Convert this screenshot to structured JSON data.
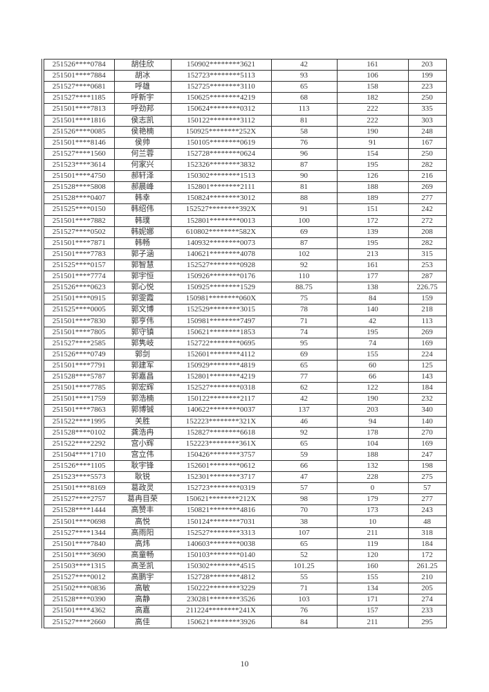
{
  "page": {
    "number": "10"
  },
  "colors": {
    "ink": "#333333",
    "border": "#2d2d2d",
    "paper": "#ffffff"
  },
  "table": {
    "columns": [
      "exam_id",
      "name",
      "id_card",
      "score1",
      "score2",
      "total"
    ],
    "rows": [
      [
        "251526****0784",
        "胡佳欣",
        "150902********3621",
        "42",
        "161",
        "203"
      ],
      [
        "251501****7884",
        "胡冰",
        "152723********5113",
        "93",
        "106",
        "199"
      ],
      [
        "251527****0681",
        "呼雄",
        "152725********3110",
        "65",
        "158",
        "223"
      ],
      [
        "251527****1185",
        "呼新宇",
        "150625********4219",
        "68",
        "182",
        "250"
      ],
      [
        "251501****7813",
        "呼劲邦",
        "150624********0312",
        "113",
        "222",
        "335"
      ],
      [
        "251501****1816",
        "侯志凯",
        "150122********3112",
        "81",
        "222",
        "303"
      ],
      [
        "251526****0085",
        "侯艳楠",
        "150925********252X",
        "58",
        "190",
        "248"
      ],
      [
        "251501****8146",
        "侯帅",
        "150105********0619",
        "76",
        "91",
        "167"
      ],
      [
        "251527****1560",
        "何兰蓉",
        "152728********0624",
        "96",
        "154",
        "250"
      ],
      [
        "251523****3614",
        "何家兴",
        "152326********3832",
        "87",
        "195",
        "282"
      ],
      [
        "251501****4750",
        "郝轩泽",
        "150302********1513",
        "90",
        "126",
        "216"
      ],
      [
        "251528****5808",
        "郝晨峰",
        "152801********2111",
        "81",
        "188",
        "269"
      ],
      [
        "251528****0407",
        "韩幸",
        "150824********3012",
        "88",
        "189",
        "277"
      ],
      [
        "251525****0150",
        "韩绍伟",
        "152527********392X",
        "91",
        "151",
        "242"
      ],
      [
        "251501****7882",
        "韩璞",
        "152801********0013",
        "100",
        "172",
        "272"
      ],
      [
        "251527****0502",
        "韩妮娜",
        "610802********582X",
        "69",
        "139",
        "208"
      ],
      [
        "251501****7871",
        "韩畅",
        "140932********0073",
        "87",
        "195",
        "282"
      ],
      [
        "251501****7783",
        "郭子涵",
        "140621********4078",
        "102",
        "213",
        "315"
      ],
      [
        "251525****0157",
        "郭智慧",
        "152527********0928",
        "92",
        "161",
        "253"
      ],
      [
        "251501****7774",
        "郭宇恒",
        "150926********0176",
        "110",
        "177",
        "287"
      ],
      [
        "251526****0623",
        "郭心悦",
        "150925********1529",
        "88.75",
        "138",
        "226.75"
      ],
      [
        "251501****0915",
        "郭雯霞",
        "150981********060X",
        "75",
        "84",
        "159"
      ],
      [
        "251525****0005",
        "郭文博",
        "152529********3015",
        "78",
        "140",
        "218"
      ],
      [
        "251501****7830",
        "郭亨伟",
        "150981********7497",
        "71",
        "42",
        "113"
      ],
      [
        "251501****7805",
        "郭守镇",
        "150621********1853",
        "74",
        "195",
        "269"
      ],
      [
        "251527****2585",
        "郭隽岐",
        "152722********0695",
        "95",
        "74",
        "169"
      ],
      [
        "251526****0749",
        "郭剑",
        "152601********4112",
        "69",
        "155",
        "224"
      ],
      [
        "251501****7791",
        "郭建军",
        "150929********4819",
        "65",
        "60",
        "125"
      ],
      [
        "251528****5787",
        "郭嘉昌",
        "152801********4219",
        "77",
        "66",
        "143"
      ],
      [
        "251501****7785",
        "郭宏辉",
        "152527********0318",
        "62",
        "122",
        "184"
      ],
      [
        "251501****1759",
        "郭浩楠",
        "150122********2117",
        "42",
        "190",
        "232"
      ],
      [
        "251501****7863",
        "郭博铖",
        "140622********0037",
        "137",
        "203",
        "340"
      ],
      [
        "251522****1995",
        "关胜",
        "152223********321X",
        "46",
        "94",
        "140"
      ],
      [
        "251528****0102",
        "龚浩冉",
        "152827********6618",
        "92",
        "178",
        "270"
      ],
      [
        "251522****2292",
        "宫小辉",
        "152223********361X",
        "65",
        "104",
        "169"
      ],
      [
        "251504****1710",
        "宫立伟",
        "150426********3757",
        "59",
        "188",
        "247"
      ],
      [
        "251526****1105",
        "耿宇锋",
        "152601********0612",
        "66",
        "132",
        "198"
      ],
      [
        "251523****5573",
        "耿锐",
        "152301********3717",
        "47",
        "228",
        "275"
      ],
      [
        "251501****8169",
        "葛政灵",
        "152723********0319",
        "57",
        "0",
        "57"
      ],
      [
        "251527****2757",
        "葛冉目荣",
        "150621********212X",
        "98",
        "179",
        "277"
      ],
      [
        "251528****1444",
        "高赞丰",
        "150821********4816",
        "70",
        "173",
        "243"
      ],
      [
        "251501****0698",
        "高悦",
        "150124********7031",
        "38",
        "10",
        "48"
      ],
      [
        "251527****1344",
        "高雨阳",
        "152527********3313",
        "107",
        "211",
        "318"
      ],
      [
        "251501****7840",
        "高炜",
        "140603********0038",
        "65",
        "119",
        "184"
      ],
      [
        "251501****3690",
        "高童畅",
        "150103********0140",
        "52",
        "120",
        "172"
      ],
      [
        "251503****1315",
        "高圣凯",
        "150302********4515",
        "101.25",
        "160",
        "261.25"
      ],
      [
        "251527****0012",
        "高鹏宇",
        "152728********4812",
        "55",
        "155",
        "210"
      ],
      [
        "251502****0836",
        "高敏",
        "150222********3229",
        "71",
        "134",
        "205"
      ],
      [
        "251528****0390",
        "高静",
        "230281********3526",
        "103",
        "171",
        "274"
      ],
      [
        "251501****4362",
        "高嘉",
        "211224********241X",
        "76",
        "157",
        "233"
      ],
      [
        "251527****2660",
        "高佳",
        "150621********3926",
        "84",
        "211",
        "295"
      ]
    ]
  }
}
